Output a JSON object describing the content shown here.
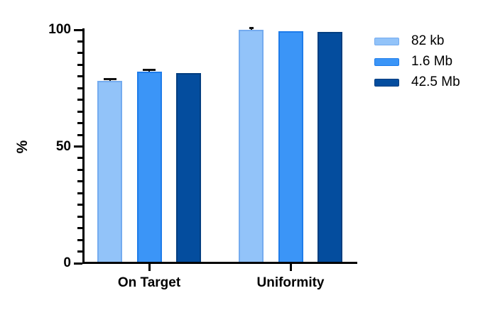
{
  "chart_data": {
    "type": "bar",
    "title": "",
    "ylabel": "%",
    "categories": [
      "On Target",
      "Uniformity"
    ],
    "series": [
      {
        "name": "82 kb",
        "fill": "#92C3F9",
        "border": "#74ABEF",
        "values": [
          78,
          100
        ],
        "errors": [
          1,
          1
        ],
        "error_cap_widths": [
          18,
          6
        ]
      },
      {
        "name": "1.6 Mb",
        "fill": "#3B95F7",
        "border": "#1E7CEA",
        "values": [
          82,
          99.5
        ],
        "errors": [
          1,
          0
        ],
        "error_cap_widths": [
          18,
          0
        ]
      },
      {
        "name": "42.5 Mb",
        "fill": "#044D9E",
        "border": "#033E80",
        "values": [
          81.5,
          99
        ],
        "errors": [
          0,
          0
        ],
        "error_cap_widths": [
          0,
          0
        ]
      }
    ],
    "ylim": [
      0,
      100
    ],
    "yticks": [
      0,
      50,
      100
    ],
    "minor_tick_step": 5,
    "legend_position": "right",
    "grid": false,
    "axis_color": "#000000",
    "text_color": "#000000",
    "background": "#FFFFFF",
    "error_bar_color": "#111111"
  }
}
